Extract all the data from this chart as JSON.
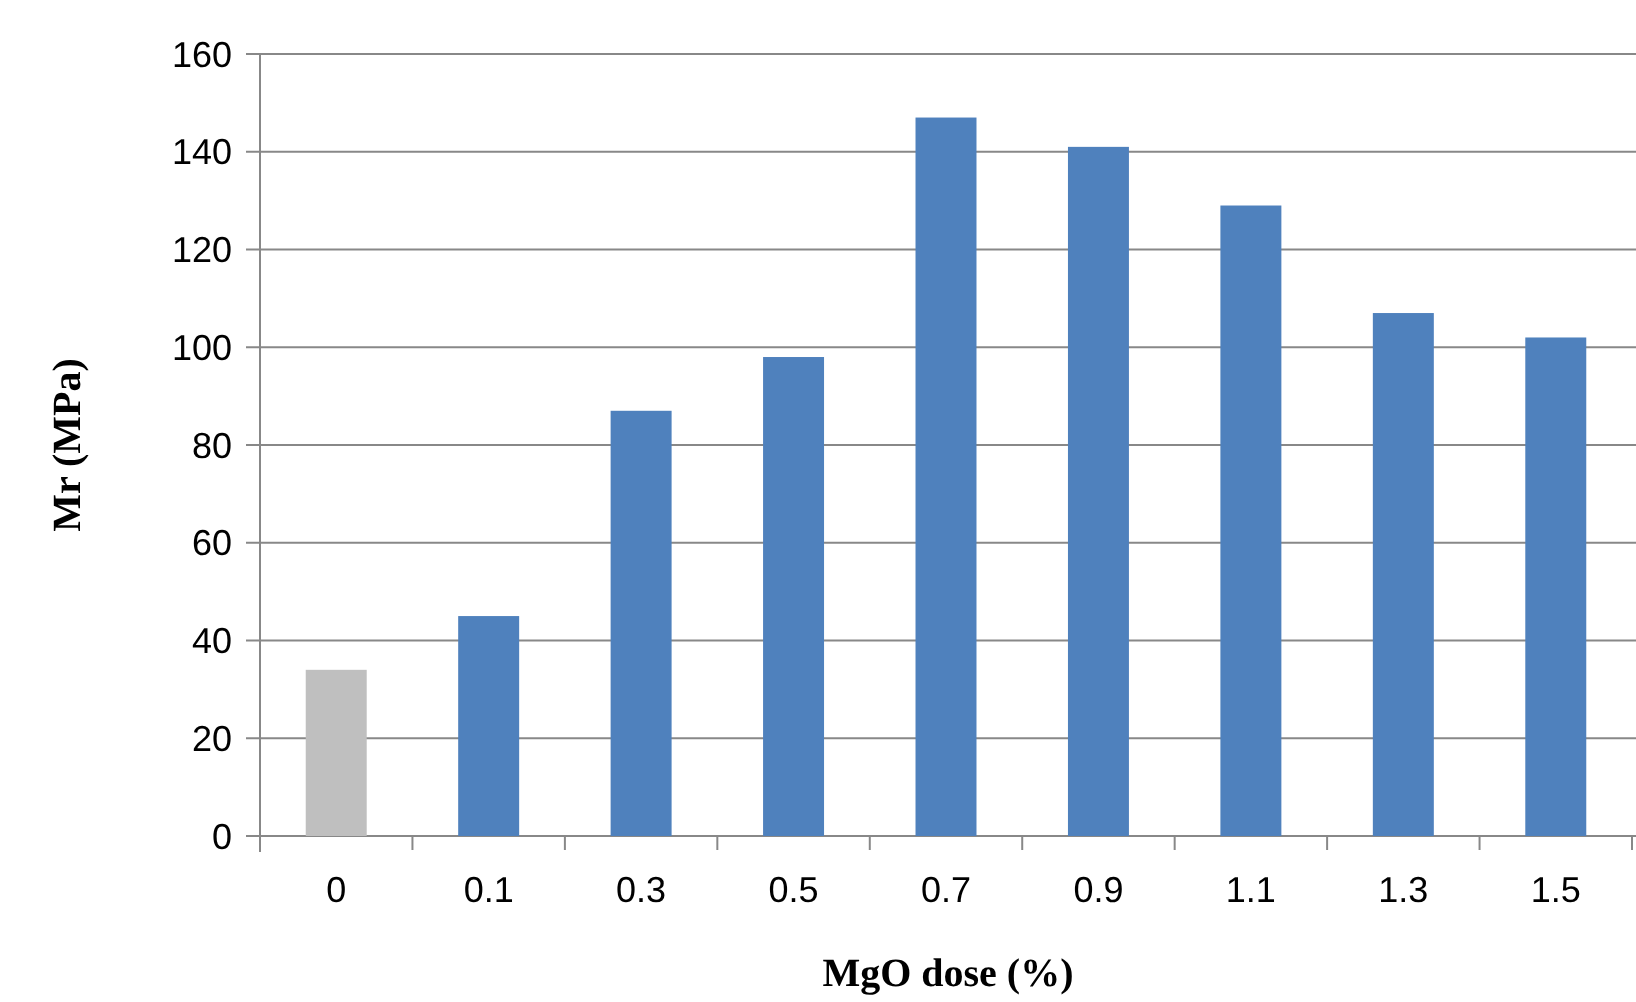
{
  "chart_data": {
    "type": "bar",
    "xlabel": "MgO dose (%)",
    "ylabel": "Mr (MPa)",
    "categories": [
      "0",
      "0.1",
      "0.3",
      "0.5",
      "0.7",
      "0.9",
      "1.1",
      "1.3",
      "1.5"
    ],
    "values": [
      34,
      45,
      87,
      98,
      147,
      141,
      129,
      107,
      102
    ],
    "colors": [
      "#bfbfbf",
      "#4f81bd",
      "#4f81bd",
      "#4f81bd",
      "#4f81bd",
      "#4f81bd",
      "#4f81bd",
      "#4f81bd",
      "#4f81bd"
    ],
    "ylim": [
      0,
      160
    ],
    "yticks": [
      0,
      20,
      40,
      60,
      80,
      100,
      120,
      140,
      160
    ],
    "grid": "y"
  }
}
